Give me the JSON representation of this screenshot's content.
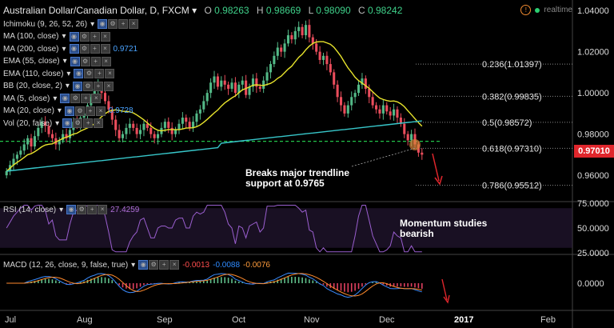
{
  "header": {
    "title": "Australian Dollar/Canadian Dollar, D, FXCM",
    "o_label": "O",
    "o_value": "0.98263",
    "h_label": "H",
    "h_value": "0.98669",
    "l_label": "L",
    "l_value": "0.98090",
    "c_label": "C",
    "c_value": "0.98242"
  },
  "realtime_label": "realtime",
  "indicators": [
    {
      "label": "Ichimoku (9, 26, 52, 26)",
      "extra": ""
    },
    {
      "label": "MA (100, close)",
      "extra": ""
    },
    {
      "label": "MA (200, close)",
      "extra": "0.9721"
    },
    {
      "label": "EMA (55, close)",
      "extra": ""
    },
    {
      "label": "EMA (110, close)",
      "extra": ""
    },
    {
      "label": "BB (20, close, 2)",
      "extra": ""
    },
    {
      "label": "MA (5, close)",
      "extra": ""
    },
    {
      "label": "MA (20, close)",
      "extra": "0.9728"
    },
    {
      "label": "Vol (20, false)",
      "extra": ""
    }
  ],
  "last_price": "0.97010",
  "annotations": {
    "trendline_note": [
      "Breaks major trendline",
      "support at 0.9765"
    ],
    "momentum_note": [
      "Momentum studies",
      "bearish"
    ]
  },
  "rsi_panel": {
    "label": "RSI (14, close)",
    "value": "27.4259"
  },
  "macd_panel": {
    "label": "MACD (12, 26, close, 9, false, true)",
    "v1": "-0.0013",
    "v2": "-0.0088",
    "v3": "-0.0076"
  },
  "chart_data": {
    "type": "candlestick",
    "x_tick_labels": [
      "Jul",
      "Aug",
      "Sep",
      "Oct",
      "Nov",
      "Dec",
      "2017",
      "Feb"
    ],
    "price_axis": {
      "ticks": [
        "1.04000",
        "1.02000",
        "1.00000",
        "0.98000",
        "0.96000"
      ],
      "ylim": [
        0.948,
        1.042
      ]
    },
    "fibonacci_levels": [
      {
        "label": "0.236(1.01397)",
        "price": 1.01397
      },
      {
        "label": "0.382(0.99835)",
        "price": 0.99835
      },
      {
        "label": "0.5(0.98572)",
        "price": 0.98572
      },
      {
        "label": "0.618(0.97310)",
        "price": 0.9731
      },
      {
        "label": "0.786(0.95512)",
        "price": 0.95512
      }
    ],
    "trendline_support": 0.9765,
    "closes": [
      0.962,
      0.965,
      0.968,
      0.97,
      0.972,
      0.975,
      0.978,
      0.974,
      0.979,
      0.983,
      0.986,
      0.984,
      0.98,
      0.978,
      0.975,
      0.977,
      0.98,
      0.978,
      0.982,
      0.986,
      0.984,
      0.988,
      0.99,
      0.994,
      0.998,
      1.002,
      1.004,
      1.0,
      0.996,
      0.992,
      0.987,
      0.982,
      0.978,
      0.98,
      0.983,
      0.985,
      0.983,
      0.98,
      0.982,
      0.985,
      0.983,
      0.98,
      0.978,
      0.98,
      0.983,
      0.986,
      0.983,
      0.98,
      0.982,
      0.985,
      0.988,
      0.986,
      0.983,
      0.986,
      0.99,
      0.992,
      0.996,
      1.0,
      1.005,
      1.008,
      1.003,
      1.006,
      1.004,
      1.002,
      1.005,
      1.0,
      1.004,
      1.006,
      0.999,
      1.003,
      1.007,
      1.003,
      1.002,
      1.006,
      1.01,
      1.014,
      1.018,
      1.022,
      1.02,
      1.024,
      1.028,
      1.026,
      1.03,
      1.032,
      1.028,
      1.033,
      1.027,
      1.024,
      1.02,
      1.016,
      1.018,
      1.014,
      1.01,
      1.004,
      0.998,
      0.994,
      0.99,
      0.994,
      0.998,
      1.0,
      1.004,
      1.007,
      1.002,
      0.998,
      0.994,
      0.992,
      0.99,
      0.994,
      0.991,
      0.989,
      0.992,
      0.988,
      0.985,
      0.98,
      0.977,
      0.98,
      0.975,
      0.971,
      0.97
    ],
    "rsi": {
      "ylim": [
        25,
        75
      ],
      "ticks": [
        "75.0000",
        "50.0000",
        "25.0000"
      ]
    },
    "macd": {
      "ticks": [
        "0.0000"
      ]
    }
  }
}
